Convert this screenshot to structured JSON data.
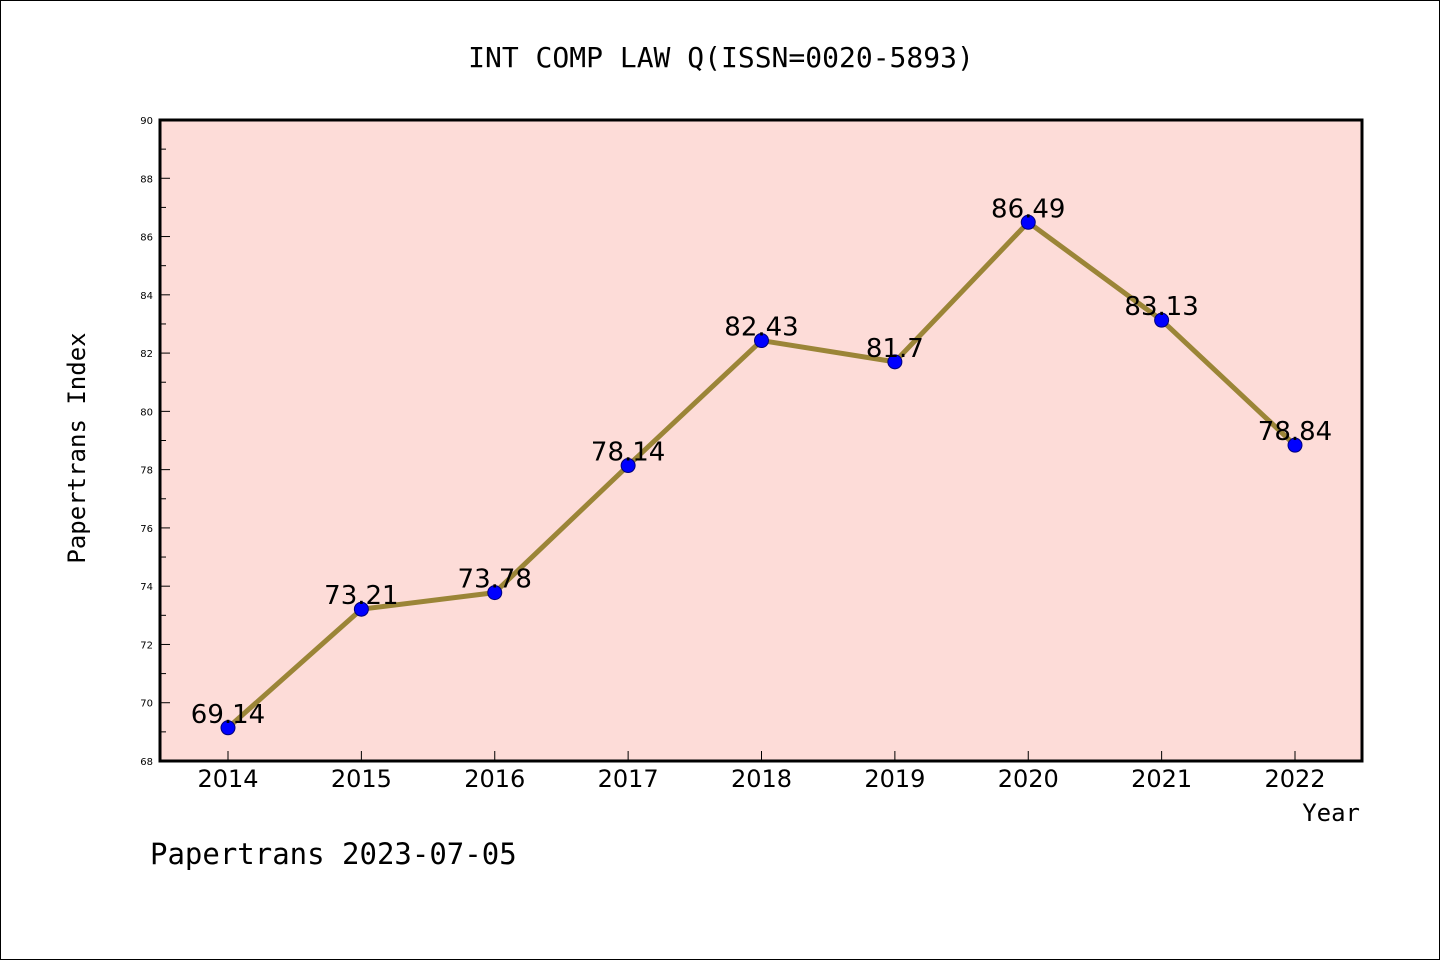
{
  "chart_data": {
    "type": "line",
    "title": "INT COMP LAW Q(ISSN=0020-5893)",
    "xlabel": "Year",
    "ylabel": "Papertrans Index",
    "categories": [
      "2014",
      "2015",
      "2016",
      "2017",
      "2018",
      "2019",
      "2020",
      "2021",
      "2022"
    ],
    "series": [
      {
        "values": [
          69.14,
          73.21,
          73.78,
          78.14,
          82.43,
          81.7,
          86.49,
          83.13,
          78.84
        ],
        "labels": [
          "69.14",
          "73.21",
          "73.78",
          "78.14",
          "82.43",
          "81.7",
          "86.49",
          "83.13",
          "78.84"
        ]
      }
    ],
    "ylim": [
      68,
      90
    ],
    "yticks": [
      "68",
      "70",
      "72",
      "74",
      "76",
      "78",
      "80",
      "82",
      "84",
      "86",
      "88",
      "90"
    ],
    "grid": false,
    "legend": "none",
    "colors": {
      "plot_background": "#fddcd8",
      "line": "#9b8537",
      "marker": "#0000ff"
    }
  },
  "footer": "Papertrans 2023-07-05"
}
